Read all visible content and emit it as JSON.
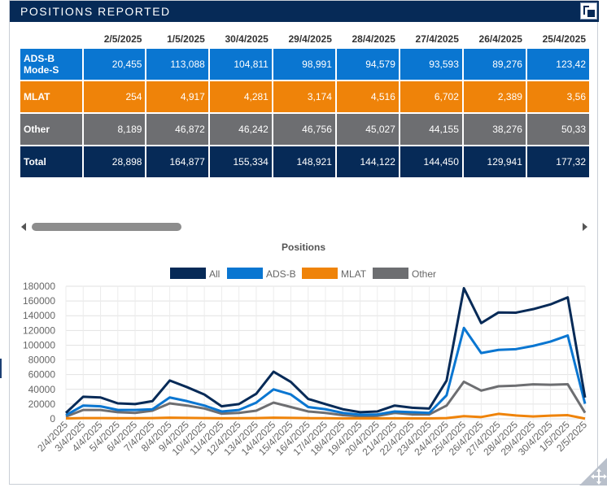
{
  "header": {
    "title": "POSITIONS REPORTED"
  },
  "table": {
    "dates": [
      "2/5/2025",
      "1/5/2025",
      "30/4/2025",
      "29/4/2025",
      "28/4/2025",
      "27/4/2025",
      "26/4/2025",
      "25/4/2025"
    ],
    "rows": [
      {
        "label": "ADS-B Mode-S",
        "values": [
          "20,455",
          "113,088",
          "104,811",
          "98,991",
          "94,579",
          "93,593",
          "89,276",
          "123,42"
        ]
      },
      {
        "label": "MLAT",
        "values": [
          "254",
          "4,917",
          "4,281",
          "3,174",
          "4,516",
          "6,702",
          "2,389",
          "3,56"
        ]
      },
      {
        "label": "Other",
        "values": [
          "8,189",
          "46,872",
          "46,242",
          "46,756",
          "45,027",
          "44,155",
          "38,276",
          "50,33"
        ]
      },
      {
        "label": "Total",
        "values": [
          "28,898",
          "164,877",
          "155,334",
          "148,921",
          "144,122",
          "144,450",
          "129,941",
          "177,32"
        ]
      }
    ]
  },
  "colors": {
    "all": "#062a57",
    "adsb": "#0a76d1",
    "mlat": "#ef8309",
    "other": "#6d6e71"
  },
  "chart_data": {
    "type": "line",
    "title": "Positions",
    "legend_position": "top",
    "ylim": [
      0,
      180000
    ],
    "yticks": [
      0,
      20000,
      40000,
      60000,
      80000,
      100000,
      120000,
      140000,
      160000,
      180000
    ],
    "grid": true,
    "x": [
      "2/4/2025",
      "3/4/2025",
      "4/4/2025",
      "5/4/2025",
      "6/4/2025",
      "7/4/2025",
      "8/4/2025",
      "9/4/2025",
      "10/4/2025",
      "11/4/2025",
      "12/4/2025",
      "13/4/2025",
      "14/4/2025",
      "15/4/2025",
      "16/4/2025",
      "17/4/2025",
      "18/4/2025",
      "19/4/2025",
      "20/4/2025",
      "21/4/2025",
      "22/4/2025",
      "23/4/2025",
      "24/4/2025",
      "25/4/2025",
      "26/4/2025",
      "27/4/2025",
      "28/4/2025",
      "29/4/2025",
      "30/4/2025",
      "1/5/2025",
      "2/5/2025"
    ],
    "series": [
      {
        "name": "All",
        "color": "#062a57",
        "values": [
          8000,
          30000,
          29000,
          21000,
          20000,
          24000,
          52000,
          43000,
          33000,
          17000,
          20000,
          34000,
          64000,
          50000,
          27000,
          20000,
          13000,
          9000,
          10000,
          18000,
          15000,
          14000,
          52000,
          177320,
          129941,
          144450,
          144122,
          148921,
          155334,
          164877,
          28898
        ]
      },
      {
        "name": "ADS-B",
        "color": "#0a76d1",
        "values": [
          5000,
          18000,
          17000,
          12000,
          12000,
          13000,
          29000,
          24000,
          18000,
          10000,
          12000,
          22000,
          40000,
          33000,
          16000,
          13000,
          8000,
          5500,
          6000,
          10000,
          9000,
          8000,
          32000,
          123420,
          89276,
          93593,
          94579,
          98991,
          104811,
          113088,
          20455
        ]
      },
      {
        "name": "MLAT",
        "color": "#ef8309",
        "values": [
          500,
          1000,
          1000,
          800,
          800,
          900,
          1500,
          1200,
          1000,
          700,
          800,
          1000,
          1500,
          1200,
          900,
          800,
          600,
          500,
          500,
          700,
          600,
          600,
          1000,
          3560,
          2389,
          6702,
          4516,
          3174,
          4281,
          4917,
          254
        ]
      },
      {
        "name": "Other",
        "color": "#6d6e71",
        "values": [
          3000,
          12000,
          12000,
          9000,
          8000,
          11000,
          21000,
          18000,
          14000,
          7000,
          8000,
          11000,
          22000,
          16000,
          10000,
          8000,
          5000,
          3500,
          4000,
          8000,
          6000,
          6000,
          18000,
          50330,
          38276,
          44155,
          45027,
          46756,
          46242,
          46872,
          8189
        ]
      }
    ]
  }
}
